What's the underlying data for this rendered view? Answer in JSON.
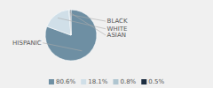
{
  "chart_data": {
    "type": "pie",
    "categories": [
      "HISPANIC",
      "WHITE",
      "ASIAN",
      "BLACK"
    ],
    "values": [
      80.6,
      18.1,
      0.8,
      0.5
    ],
    "value_labels": [
      "80.6%",
      "18.1%",
      "0.8%",
      "0.5%"
    ],
    "colors": [
      "#6e8fa3",
      "#d0dfe8",
      "#afc5d0",
      "#1c2d40"
    ],
    "legend": "bottom"
  }
}
